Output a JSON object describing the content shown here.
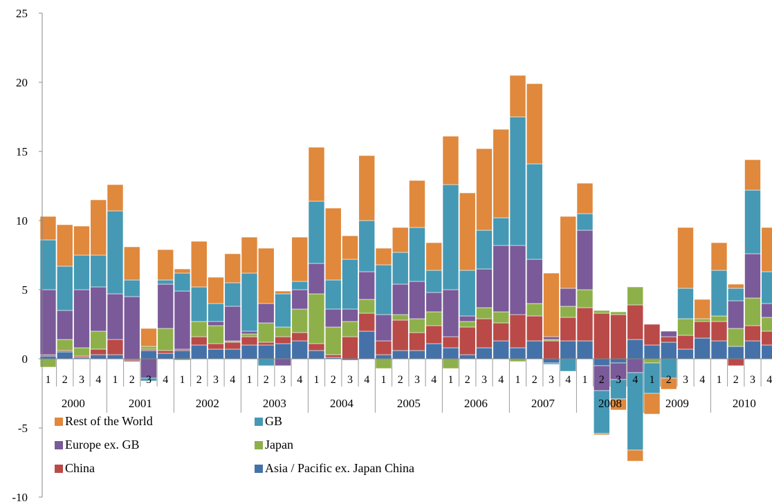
{
  "chart_data": {
    "type": "bar",
    "stacked": true,
    "title": "",
    "xlabel": "",
    "ylabel": "",
    "ylim": [
      -10,
      25
    ],
    "yticks": [
      -10,
      -5,
      0,
      5,
      10,
      15,
      20,
      25
    ],
    "grid": false,
    "legend_position": "bottom-left",
    "years": [
      "2000",
      "2001",
      "2002",
      "2003",
      "2004",
      "2005",
      "2006",
      "2007",
      "2008",
      "2009",
      "2010"
    ],
    "categories": [
      "1",
      "2",
      "3",
      "4",
      "1",
      "2",
      "3",
      "4",
      "1",
      "2",
      "3",
      "4",
      "1",
      "2",
      "3",
      "4",
      "1",
      "2",
      "3",
      "4",
      "1",
      "2",
      "3",
      "4",
      "1",
      "2",
      "3",
      "4",
      "1",
      "2",
      "3",
      "4",
      "1",
      "2",
      "3",
      "4",
      "1",
      "2",
      "3",
      "4",
      "1",
      "2",
      "3",
      "4"
    ],
    "series": [
      {
        "name": "Asia / Pacific ex. Japan China",
        "color": "#4472a8",
        "values": [
          0.2,
          0.5,
          0.1,
          0.3,
          0.3,
          -0.1,
          0.6,
          0.4,
          0.6,
          1.0,
          0.7,
          0.7,
          1.0,
          1.0,
          1.1,
          1.3,
          0.6,
          0.1,
          -0.1,
          2.0,
          0.3,
          0.6,
          0.6,
          1.1,
          0.8,
          0.3,
          0.8,
          1.3,
          0.8,
          1.3,
          -0.3,
          1.3,
          1.3,
          -0.5,
          -0.3,
          1.4,
          1.0,
          1.2,
          0.7,
          1.5,
          1.3,
          0.9,
          1.3,
          1.0
        ]
      },
      {
        "name": "China",
        "color": "#b94a48",
        "values": [
          0.1,
          0.1,
          0.1,
          0.4,
          1.1,
          -0.1,
          0.1,
          0.2,
          0.1,
          0.6,
          0.4,
          0.5,
          0.6,
          0.2,
          0.5,
          0.6,
          0.5,
          0.2,
          1.6,
          1.3,
          1.0,
          2.2,
          1.3,
          1.3,
          0.8,
          2.0,
          2.1,
          1.3,
          2.4,
          1.8,
          1.3,
          1.7,
          2.4,
          3.3,
          3.2,
          2.5,
          1.5,
          0.4,
          1.0,
          1.2,
          1.4,
          -0.5,
          1.1,
          1.0
        ]
      },
      {
        "name": "Japan",
        "color": "#8eb04a",
        "values": [
          -0.6,
          0.8,
          0.6,
          1.3,
          0.0,
          0.0,
          0.2,
          1.6,
          -0.1,
          1.1,
          1.3,
          0.1,
          0.2,
          1.4,
          0.7,
          1.7,
          3.6,
          2.0,
          1.1,
          1.0,
          -0.7,
          0.4,
          1.0,
          1.0,
          -0.7,
          0.4,
          0.8,
          0.8,
          -0.2,
          0.9,
          0.1,
          0.8,
          1.3,
          0.2,
          0.2,
          1.3,
          -0.3,
          0.0,
          1.2,
          0.2,
          0.4,
          1.3,
          2.0,
          1.0
        ]
      },
      {
        "name": "Europe ex. GB",
        "color": "#7a5a98",
        "values": [
          4.7,
          2.1,
          4.2,
          3.2,
          3.3,
          4.5,
          -1.4,
          3.2,
          4.2,
          0.0,
          0.3,
          2.5,
          0.2,
          1.4,
          -0.5,
          1.4,
          2.2,
          1.3,
          0.9,
          2.0,
          1.9,
          2.2,
          2.7,
          1.4,
          3.4,
          0.4,
          2.8,
          4.8,
          5.0,
          3.2,
          0.2,
          1.3,
          4.3,
          -1.8,
          -1.2,
          -1.0,
          0.0,
          0.4,
          0.0,
          0.0,
          0.0,
          2.0,
          3.2,
          1.0
        ]
      },
      {
        "name": "GB",
        "color": "#4599b4",
        "values": [
          3.6,
          3.2,
          2.5,
          2.3,
          6.0,
          1.2,
          -0.2,
          0.3,
          1.3,
          2.5,
          1.3,
          1.7,
          4.2,
          -0.5,
          2.4,
          0.6,
          4.5,
          2.1,
          3.6,
          3.7,
          3.6,
          2.3,
          3.9,
          1.6,
          7.6,
          3.3,
          2.8,
          2.0,
          9.3,
          6.9,
          -0.1,
          -0.9,
          1.2,
          -3.1,
          -1.4,
          -5.6,
          -2.2,
          -1.4,
          2.2,
          0.0,
          3.3,
          0.9,
          4.6,
          2.3
        ]
      },
      {
        "name": "Rest of the World",
        "color": "#e0883c",
        "values": [
          1.7,
          3.0,
          2.1,
          4.0,
          1.9,
          2.4,
          1.3,
          2.2,
          0.3,
          3.3,
          1.9,
          2.1,
          2.6,
          4.0,
          0.2,
          3.2,
          3.9,
          5.2,
          1.7,
          4.7,
          1.2,
          1.8,
          3.4,
          2.0,
          3.5,
          5.6,
          5.9,
          6.4,
          3.0,
          5.8,
          4.6,
          5.2,
          2.2,
          -0.1,
          -0.8,
          -0.8,
          -1.5,
          -0.8,
          4.4,
          1.4,
          2.0,
          0.3,
          2.2,
          3.2
        ]
      }
    ]
  }
}
